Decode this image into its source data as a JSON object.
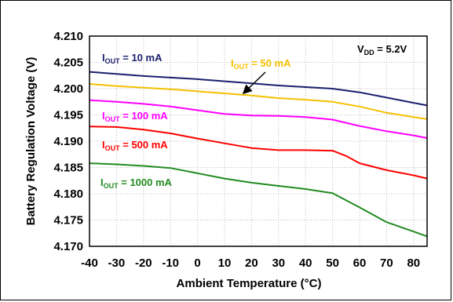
{
  "chart_data": {
    "type": "line",
    "xlabel": "Ambient Temperature (°C)",
    "ylabel": "Battery Regulation Voltage (V)",
    "xlim": [
      -40,
      85
    ],
    "ylim": [
      4.17,
      4.21
    ],
    "x_ticks": [
      "-40",
      "-30",
      "-20",
      "-10",
      "0",
      "10",
      "20",
      "30",
      "40",
      "50",
      "60",
      "70",
      "80"
    ],
    "y_ticks": [
      "4.210",
      "4.205",
      "4.200",
      "4.195",
      "4.190",
      "4.185",
      "4.180",
      "4.175",
      "4.170"
    ],
    "grid": true,
    "annotation": {
      "main": "V",
      "sub": "DD",
      "suffix": " = 5.2V"
    },
    "series": [
      {
        "name": "IOUT = 10 mA",
        "label": {
          "main": "I",
          "sub": "OUT",
          "suffix": " = 10 mA"
        },
        "color": "#1a1f6e",
        "x": [
          -40,
          -30,
          -20,
          -10,
          0,
          10,
          20,
          30,
          40,
          50,
          60,
          70,
          80,
          85
        ],
        "y": [
          4.2032,
          4.2028,
          4.2024,
          4.2021,
          4.2018,
          4.2014,
          4.201,
          4.2006,
          4.2003,
          4.2,
          4.1993,
          4.1983,
          4.1973,
          4.1968
        ]
      },
      {
        "name": "IOUT = 50 mA",
        "label": {
          "main": "I",
          "sub": "OUT",
          "suffix": " = 50 mA"
        },
        "color": "#f5c000",
        "x": [
          -40,
          -30,
          -20,
          -10,
          0,
          10,
          20,
          30,
          40,
          50,
          60,
          70,
          80,
          85
        ],
        "y": [
          4.2009,
          4.2005,
          4.2002,
          4.1999,
          4.1995,
          4.1991,
          4.1987,
          4.1982,
          4.1979,
          4.1975,
          4.1966,
          4.1954,
          4.1946,
          4.1942
        ]
      },
      {
        "name": "IOUT = 100 mA",
        "label": {
          "main": "I",
          "sub": "OUT",
          "suffix": " = 100 mA"
        },
        "color": "#ff00ff",
        "x": [
          -40,
          -30,
          -20,
          -10,
          0,
          10,
          20,
          30,
          40,
          50,
          60,
          70,
          80,
          85
        ],
        "y": [
          4.1978,
          4.1975,
          4.1971,
          4.1966,
          4.1959,
          4.1952,
          4.1949,
          4.1948,
          4.1946,
          4.1941,
          4.1929,
          4.1919,
          4.1911,
          4.1906
        ]
      },
      {
        "name": "IOUT = 500 mA",
        "label": {
          "main": "I",
          "sub": "OUT",
          "suffix": " = 500 mA"
        },
        "color": "#ff0000",
        "x": [
          -40,
          -30,
          -20,
          -10,
          0,
          10,
          20,
          30,
          40,
          50,
          55,
          60,
          70,
          80,
          85
        ],
        "y": [
          4.1928,
          4.1927,
          4.1922,
          4.1915,
          4.1905,
          4.1896,
          4.1887,
          4.1883,
          4.1883,
          4.1882,
          4.1872,
          4.1858,
          4.1845,
          4.1835,
          4.1829
        ]
      },
      {
        "name": "IOUT = 1000 mA",
        "label": {
          "main": "I",
          "sub": "OUT",
          "suffix": " = 1000 mA"
        },
        "color": "#228b22",
        "x": [
          -40,
          -30,
          -20,
          -10,
          0,
          10,
          20,
          30,
          40,
          50,
          60,
          70,
          80,
          85
        ],
        "y": [
          4.1858,
          4.1856,
          4.1853,
          4.1849,
          4.1839,
          4.1829,
          4.1821,
          4.1815,
          4.1809,
          4.1801,
          4.1774,
          4.1746,
          4.1728,
          4.1719
        ]
      }
    ]
  }
}
